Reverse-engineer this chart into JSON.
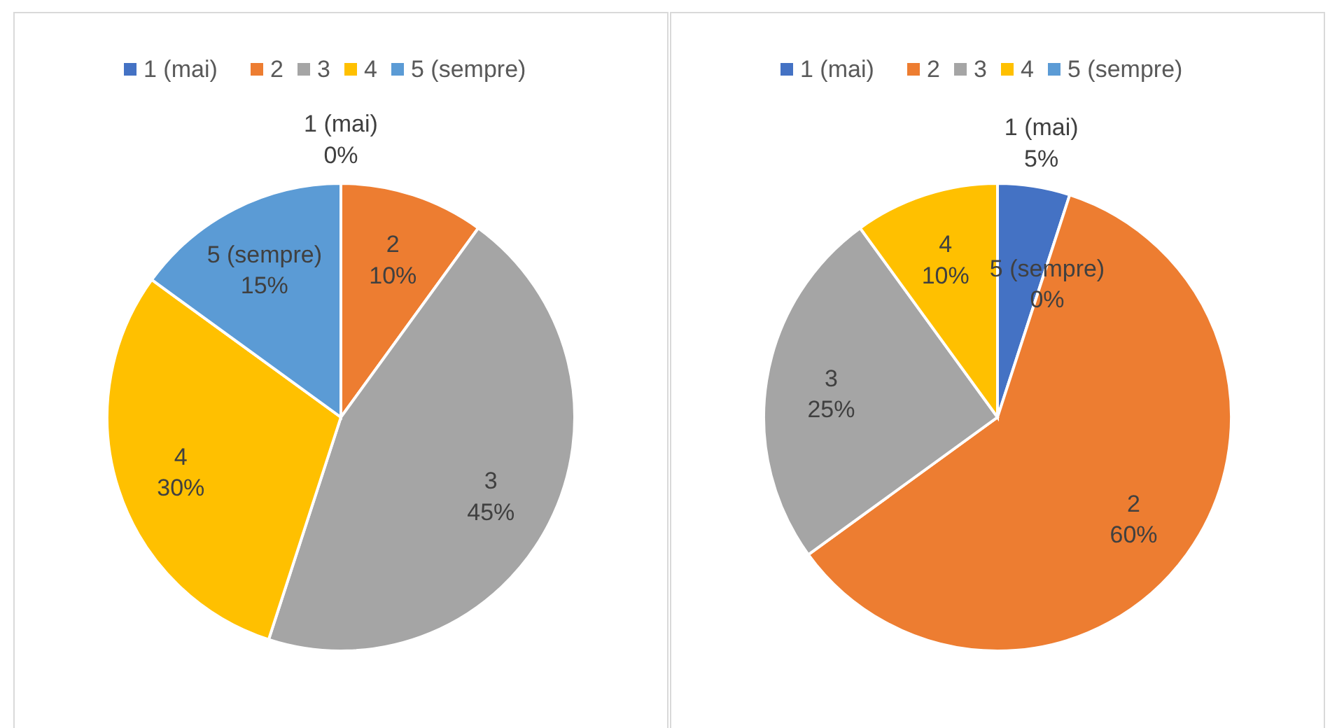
{
  "chart_data": [
    {
      "type": "pie",
      "categories": [
        "1 (mai)",
        "2",
        "3",
        "4",
        "5 (sempre)"
      ],
      "values": [
        0,
        10,
        45,
        30,
        15
      ],
      "value_labels": [
        "0%",
        "10%",
        "45%",
        "30%",
        "15%"
      ],
      "colors": [
        "#4472c4",
        "#ed7d31",
        "#a5a5a5",
        "#ffc000",
        "#5b9bd5"
      ],
      "legend": "top"
    },
    {
      "type": "pie",
      "categories": [
        "1 (mai)",
        "2",
        "3",
        "4",
        "5 (sempre)"
      ],
      "values": [
        5,
        60,
        25,
        10,
        0
      ],
      "value_labels": [
        "5%",
        "60%",
        "25%",
        "10%",
        "0%"
      ],
      "colors": [
        "#4472c4",
        "#ed7d31",
        "#a5a5a5",
        "#ffc000",
        "#5b9bd5"
      ],
      "legend": "top"
    }
  ]
}
